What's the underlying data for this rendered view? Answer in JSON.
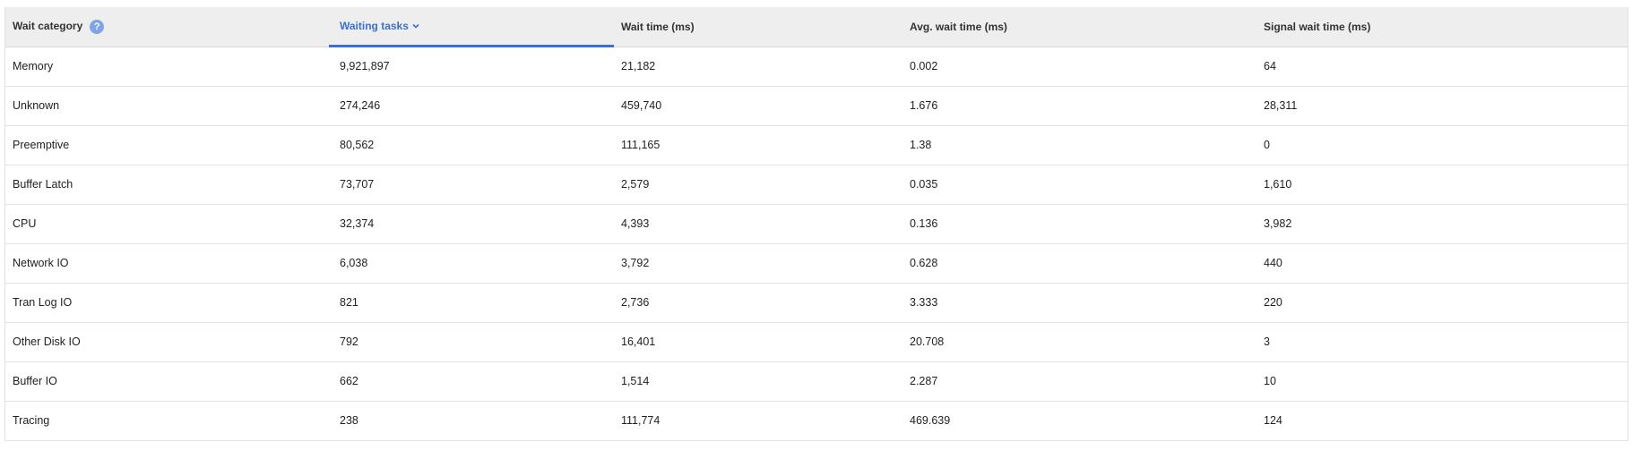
{
  "table": {
    "headers": {
      "category": "Wait category",
      "waiting_tasks": "Waiting tasks",
      "wait_time": "Wait time (ms)",
      "avg_wait_time": "Avg. wait time (ms)",
      "signal_wait_time": "Signal wait time (ms)"
    },
    "help_icon_glyph": "?",
    "sorted_column": "Waiting tasks",
    "sort_direction": "descending",
    "accent_color": "#3a6fd3",
    "rows": [
      {
        "category": "Memory",
        "waiting_tasks": "9,921,897",
        "wait_time": "21,182",
        "avg_wait_time": "0.002",
        "signal_wait_time": "64"
      },
      {
        "category": "Unknown",
        "waiting_tasks": "274,246",
        "wait_time": "459,740",
        "avg_wait_time": "1.676",
        "signal_wait_time": "28,311"
      },
      {
        "category": "Preemptive",
        "waiting_tasks": "80,562",
        "wait_time": "111,165",
        "avg_wait_time": "1.38",
        "signal_wait_time": "0"
      },
      {
        "category": "Buffer Latch",
        "waiting_tasks": "73,707",
        "wait_time": "2,579",
        "avg_wait_time": "0.035",
        "signal_wait_time": "1,610"
      },
      {
        "category": "CPU",
        "waiting_tasks": "32,374",
        "wait_time": "4,393",
        "avg_wait_time": "0.136",
        "signal_wait_time": "3,982"
      },
      {
        "category": "Network IO",
        "waiting_tasks": "6,038",
        "wait_time": "3,792",
        "avg_wait_time": "0.628",
        "signal_wait_time": "440"
      },
      {
        "category": "Tran Log IO",
        "waiting_tasks": "821",
        "wait_time": "2,736",
        "avg_wait_time": "3.333",
        "signal_wait_time": "220"
      },
      {
        "category": "Other Disk IO",
        "waiting_tasks": "792",
        "wait_time": "16,401",
        "avg_wait_time": "20.708",
        "signal_wait_time": "3"
      },
      {
        "category": "Buffer IO",
        "waiting_tasks": "662",
        "wait_time": "1,514",
        "avg_wait_time": "2.287",
        "signal_wait_time": "10"
      },
      {
        "category": "Tracing",
        "waiting_tasks": "238",
        "wait_time": "111,774",
        "avg_wait_time": "469.639",
        "signal_wait_time": "124"
      }
    ]
  }
}
